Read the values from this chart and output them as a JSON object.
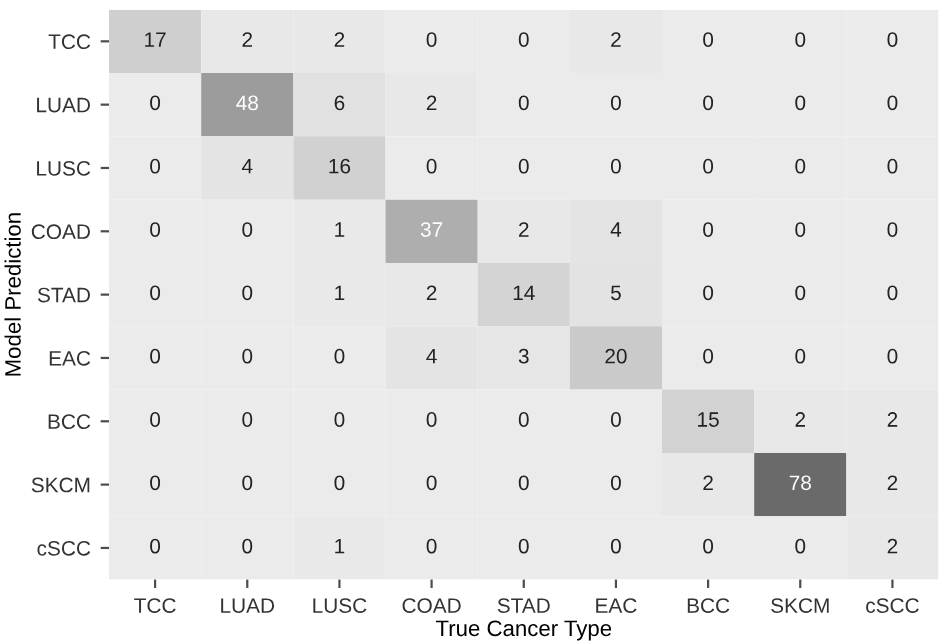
{
  "chart_data": {
    "type": "heatmap",
    "xlabel": "True Cancer Type",
    "ylabel": "Model Prediction",
    "categories": [
      "TCC",
      "LUAD",
      "LUSC",
      "COAD",
      "STAD",
      "EAC",
      "BCC",
      "SKCM",
      "cSCC"
    ],
    "y_categories": [
      "TCC",
      "LUAD",
      "LUSC",
      "COAD",
      "STAD",
      "EAC",
      "BCC",
      "SKCM",
      "cSCC"
    ],
    "cells": [
      [
        17,
        2,
        2,
        0,
        0,
        2,
        0,
        0,
        0
      ],
      [
        0,
        48,
        6,
        2,
        0,
        0,
        0,
        0,
        0
      ],
      [
        0,
        4,
        16,
        0,
        0,
        0,
        0,
        0,
        0
      ],
      [
        0,
        0,
        1,
        37,
        2,
        4,
        0,
        0,
        0
      ],
      [
        0,
        0,
        1,
        2,
        14,
        5,
        0,
        0,
        0
      ],
      [
        0,
        0,
        0,
        4,
        3,
        20,
        0,
        0,
        0
      ],
      [
        0,
        0,
        0,
        0,
        0,
        0,
        15,
        2,
        2
      ],
      [
        0,
        0,
        0,
        0,
        0,
        0,
        2,
        78,
        2
      ],
      [
        0,
        0,
        1,
        0,
        0,
        0,
        0,
        0,
        2
      ]
    ],
    "data_labels": true
  }
}
